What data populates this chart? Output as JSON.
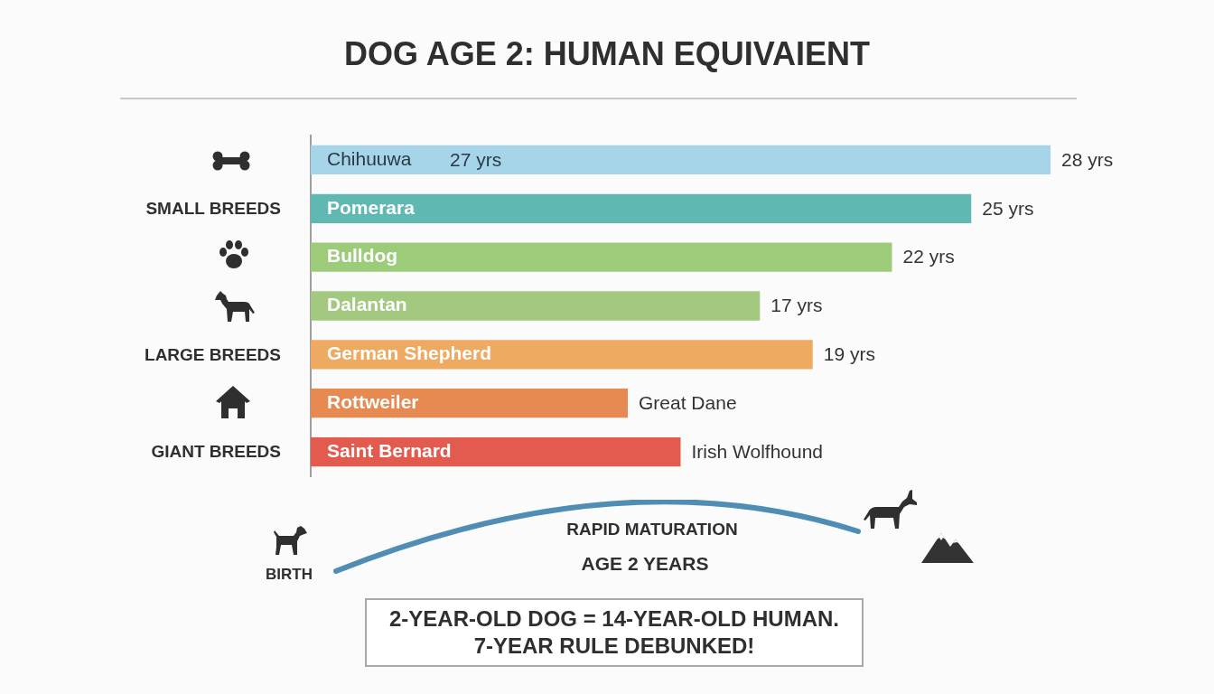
{
  "chart_data": {
    "type": "bar",
    "orientation": "horizontal",
    "title": "DOG AGE 2: HUMAN EQUIVAIENT",
    "tick_labels": "y",
    "categories": [
      "Chihuuwa",
      "Pomerara",
      "Bulldog",
      "Dalantan",
      "German Shepherd",
      "Rottweiler",
      "Saint Bernard"
    ],
    "values": [
      28,
      25,
      22,
      17,
      19,
      12,
      14
    ],
    "colors": [
      "#a6d4e8",
      "#5fb8b2",
      "#9ccb7a",
      "#a3c880",
      "#efaa62",
      "#e78a52",
      "#e25b4e"
    ],
    "value_labels": [
      "28 yrs",
      "25 yrs",
      "22 yrs",
      "17 yrs",
      "19 yrs",
      null,
      null
    ],
    "annotations": [
      "SMALL BREEDS",
      "LARGE BREEDS",
      "GIANT BREEDS",
      "27 yrs",
      {
        "text": "Great Dane",
        "x": 12,
        "y": "Rottweiler"
      },
      {
        "text": "Irish Wolfhound",
        "x": 14,
        "y": "Saint Bernard"
      },
      "BIRTH",
      "RAPID MATURATION",
      "AGE 2 YEARS",
      "2-YEAR-OLD DOG = 14-YEAR-OLD HUMAN.\n7-YEAR RULE DEBUNKED!"
    ]
  }
}
